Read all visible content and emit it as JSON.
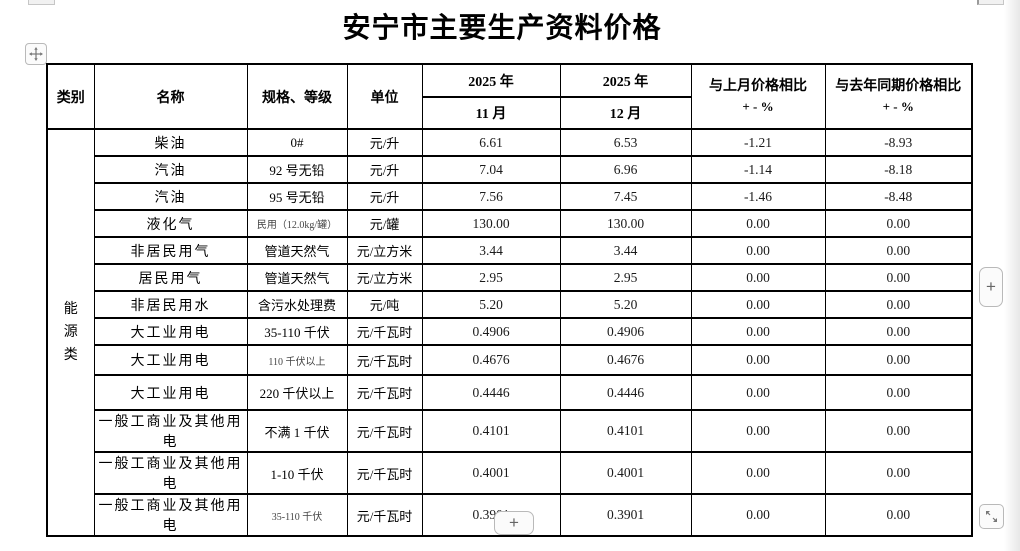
{
  "title": "安宁市主要生产资料价格",
  "table": {
    "headers": {
      "category": "类别",
      "name": "名称",
      "spec": "规格、等级",
      "unit": "单位",
      "year": "2025 年",
      "month_nov": "11 月",
      "month_dec": "12 月",
      "mom_title": "与上月价格相比",
      "yoy_title": "与去年同期价格相比",
      "pct_line": "+ - %"
    },
    "category_label": "能源类",
    "rows": [
      {
        "name": "柴油",
        "spec": "0#",
        "unit": "元/升",
        "nov": "6.61",
        "dec": "6.53",
        "mom": "-1.21",
        "yoy": "-8.93"
      },
      {
        "name": "汽油",
        "spec": "92 号无铅",
        "unit": "元/升",
        "nov": "7.04",
        "dec": "6.96",
        "mom": "-1.14",
        "yoy": "-8.18"
      },
      {
        "name": "汽油",
        "spec": "95 号无铅",
        "unit": "元/升",
        "nov": "7.56",
        "dec": "7.45",
        "mom": "-1.46",
        "yoy": "-8.48"
      },
      {
        "name": "液化气",
        "spec": "民用（12.0kg/罐）",
        "unit": "元/罐",
        "nov": "130.00",
        "dec": "130.00",
        "mom": "0.00",
        "yoy": "0.00"
      },
      {
        "name": "非居民用气",
        "spec": "管道天然气",
        "unit": "元/立方米",
        "nov": "3.44",
        "dec": "3.44",
        "mom": "0.00",
        "yoy": "0.00"
      },
      {
        "name": "居民用气",
        "spec": "管道天然气",
        "unit": "元/立方米",
        "nov": "2.95",
        "dec": "2.95",
        "mom": "0.00",
        "yoy": "0.00"
      },
      {
        "name": "非居民用水",
        "spec": "含污水处理费",
        "unit": "元/吨",
        "nov": "5.20",
        "dec": "5.20",
        "mom": "0.00",
        "yoy": "0.00"
      },
      {
        "name": "大工业用电",
        "spec": "35-110 千伏",
        "unit": "元/千瓦时",
        "nov": "0.4906",
        "dec": "0.4906",
        "mom": "0.00",
        "yoy": "0.00"
      },
      {
        "name": "大工业用电",
        "spec": "110 千伏以上",
        "unit": "元/千瓦时",
        "nov": "0.4676",
        "dec": "0.4676",
        "mom": "0.00",
        "yoy": "0.00"
      },
      {
        "name": "大工业用电",
        "spec": "220 千伏以上",
        "unit": "元/千瓦时",
        "nov": "0.4446",
        "dec": "0.4446",
        "mom": "0.00",
        "yoy": "0.00"
      },
      {
        "name": "一般工商业及其他用电",
        "spec": "不满 1 千伏",
        "unit": "元/千瓦时",
        "nov": "0.4101",
        "dec": "0.4101",
        "mom": "0.00",
        "yoy": "0.00"
      },
      {
        "name": "一般工商业及其他用电",
        "spec": "1-10 千伏",
        "unit": "元/千瓦时",
        "nov": "0.4001",
        "dec": "0.4001",
        "mom": "0.00",
        "yoy": "0.00"
      },
      {
        "name": "一般工商业及其他用电",
        "spec": "35-110 千伏",
        "unit": "元/千瓦时",
        "nov": "0.3901",
        "dec": "0.3901",
        "mom": "0.00",
        "yoy": "0.00"
      }
    ]
  },
  "controls": {
    "plus_right": "+",
    "plus_bottom": "+"
  },
  "colors": {
    "table_border": "#000000",
    "text": "#000000",
    "control_border": "#b9b9b9",
    "control_glyph": "#777777"
  }
}
